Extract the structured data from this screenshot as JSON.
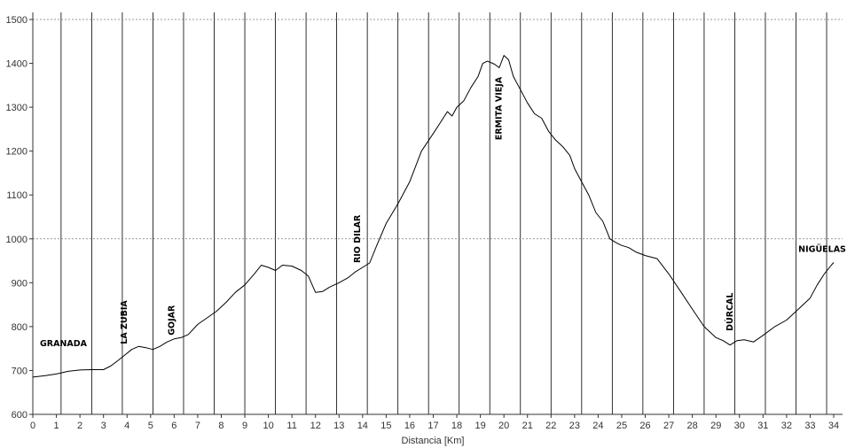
{
  "chart_data": {
    "type": "line",
    "xlabel": "Distancia [Km]",
    "ylabel": "",
    "xlim": [
      0,
      34
    ],
    "ylim": [
      600,
      1500
    ],
    "x_ticks": [
      0,
      1,
      2,
      3,
      4,
      5,
      6,
      7,
      8,
      9,
      10,
      11,
      12,
      13,
      14,
      15,
      16,
      17,
      18,
      19,
      20,
      21,
      22,
      23,
      24,
      25,
      26,
      27,
      28,
      29,
      30,
      31,
      32,
      33,
      34
    ],
    "x_tick_labels": [
      "0",
      "1",
      "2",
      "3",
      "4",
      "5",
      "6",
      "7",
      "8",
      "9",
      "10",
      "11",
      "12",
      "13",
      "14",
      "15",
      "16",
      "17",
      "18",
      "19",
      "20",
      "21",
      "22",
      "23",
      "24",
      "25",
      "26",
      "27",
      "28",
      "29",
      "30",
      "31",
      "32",
      "33",
      "34"
    ],
    "y_ticks": [
      600,
      700,
      800,
      900,
      1000,
      1100,
      1200,
      1300,
      1400,
      1500
    ],
    "y_tick_labels": [
      "600",
      "700",
      "800",
      "900",
      "1000",
      "1100",
      "1200",
      "1300",
      "1400",
      "1500"
    ],
    "dashed_gridlines_y": [
      1000,
      1500
    ],
    "vertical_gridlines_x": [
      1.2,
      2.5,
      3.8,
      5.1,
      6.4,
      7.7,
      9.0,
      10.3,
      11.6,
      12.9,
      14.2,
      15.5,
      16.8,
      18.1,
      19.4,
      20.7,
      22.0,
      23.3,
      24.6,
      25.9,
      27.2,
      28.5,
      29.8,
      31.1,
      32.4,
      33.7
    ],
    "series": [
      {
        "x": [
          0,
          0.5,
          1,
          1.5,
          2,
          2.5,
          3,
          3.3,
          3.6,
          3.9,
          4.2,
          4.5,
          4.8,
          5.1,
          5.4,
          5.7,
          6,
          6.3,
          6.6,
          7,
          7.4,
          7.8,
          8.2,
          8.6,
          9,
          9.4,
          9.7,
          10,
          10.3,
          10.6,
          11,
          11.4,
          11.7,
          12,
          12.3,
          12.6,
          13,
          13.4,
          13.7,
          14,
          14.3,
          14.6,
          15,
          15.5,
          16,
          16.5,
          17,
          17.3,
          17.6,
          17.8,
          18,
          18.3,
          18.6,
          18.9,
          19.1,
          19.3,
          19.6,
          19.8,
          20,
          20.2,
          20.4,
          20.7,
          21,
          21.3,
          21.6,
          21.9,
          22.2,
          22.5,
          22.8,
          23,
          23.3,
          23.6,
          23.9,
          24.2,
          24.5,
          24.8,
          25,
          25.3,
          25.6,
          26,
          26.5,
          27,
          27.5,
          28,
          28.5,
          29,
          29.3,
          29.6,
          29.9,
          30.2,
          30.6,
          31,
          31.5,
          32,
          32.5,
          33,
          33.3,
          33.6,
          33.9,
          34
        ],
        "y": [
          685,
          688,
          692,
          698,
          701,
          702,
          702,
          710,
          722,
          735,
          748,
          755,
          752,
          748,
          755,
          765,
          772,
          775,
          782,
          805,
          820,
          835,
          855,
          878,
          895,
          920,
          940,
          935,
          928,
          940,
          938,
          928,
          915,
          878,
          880,
          890,
          900,
          912,
          925,
          935,
          945,
          985,
          1035,
          1080,
          1130,
          1200,
          1240,
          1265,
          1290,
          1280,
          1300,
          1315,
          1345,
          1370,
          1400,
          1405,
          1398,
          1390,
          1418,
          1408,
          1370,
          1340,
          1310,
          1285,
          1275,
          1245,
          1225,
          1210,
          1190,
          1160,
          1130,
          1100,
          1060,
          1040,
          1000,
          990,
          985,
          980,
          970,
          962,
          955,
          920,
          880,
          840,
          800,
          775,
          768,
          758,
          768,
          770,
          765,
          780,
          800,
          815,
          840,
          865,
          895,
          920,
          940,
          946
        ],
        "color": "#000000"
      }
    ],
    "annotations": [
      {
        "text": "GRANADA",
        "x": 0.3,
        "y": 755,
        "orientation": "horizontal"
      },
      {
        "text": "LA ZUBIA",
        "x": 4.0,
        "y": 760,
        "orientation": "vertical"
      },
      {
        "text": "GOJAR",
        "x": 6.0,
        "y": 780,
        "orientation": "vertical"
      },
      {
        "text": "RIO DILAR",
        "x": 13.9,
        "y": 945,
        "orientation": "vertical"
      },
      {
        "text": "ERMITA VIEJA",
        "x": 19.9,
        "y": 1225,
        "orientation": "vertical"
      },
      {
        "text": "DÚRCAL",
        "x": 29.7,
        "y": 790,
        "orientation": "vertical"
      },
      {
        "text": "NIGÜELAS",
        "x": 32.5,
        "y": 970,
        "orientation": "horizontal"
      }
    ]
  }
}
